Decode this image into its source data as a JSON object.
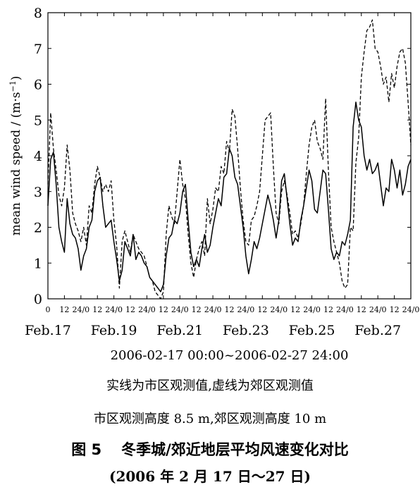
{
  "chart_data": {
    "type": "line",
    "ylabel": "mean wind speed / (m·s⁻¹)",
    "ylabel_main": "mean wind speed / (m·s",
    "ylabel_sup": "−1",
    "ylabel_tail": ")",
    "ylim": [
      0,
      8
    ],
    "y_ticks": [
      "0",
      "1",
      "2",
      "3",
      "4",
      "5",
      "6",
      "7",
      "8"
    ],
    "hour_ticks": [
      "0",
      "12",
      "24/0",
      "12",
      "24/0",
      "12",
      "24/0",
      "12",
      "24/0",
      "12",
      "24/0",
      "12",
      "24/0",
      "12",
      "24/0",
      "12",
      "24/0",
      "12",
      "24/0",
      "12",
      "24/0",
      "12",
      "24/0"
    ],
    "date_labels": [
      "Feb.17",
      "Feb.19",
      "Feb.21",
      "Feb.23",
      "Feb.25",
      "Feb.27"
    ],
    "xlabel": "2006-02-17 00:00~2006-02-27 24:00",
    "x_hours_max": 264,
    "series": [
      {
        "style": "solid",
        "points": [
          [
            0,
            2.6
          ],
          [
            2,
            3.9
          ],
          [
            4,
            4.1
          ],
          [
            6,
            3.2
          ],
          [
            8,
            2.0
          ],
          [
            10,
            1.6
          ],
          [
            12,
            1.3
          ],
          [
            14,
            2.8
          ],
          [
            16,
            2.1
          ],
          [
            18,
            1.8
          ],
          [
            20,
            1.7
          ],
          [
            22,
            1.4
          ],
          [
            24,
            0.8
          ],
          [
            26,
            1.2
          ],
          [
            28,
            1.4
          ],
          [
            30,
            2.0
          ],
          [
            32,
            2.2
          ],
          [
            34,
            3.0
          ],
          [
            36,
            3.3
          ],
          [
            38,
            3.4
          ],
          [
            40,
            2.6
          ],
          [
            42,
            2.0
          ],
          [
            44,
            2.1
          ],
          [
            46,
            2.2
          ],
          [
            48,
            1.6
          ],
          [
            50,
            1.1
          ],
          [
            52,
            0.5
          ],
          [
            54,
            0.8
          ],
          [
            56,
            1.6
          ],
          [
            58,
            1.4
          ],
          [
            60,
            1.2
          ],
          [
            62,
            1.8
          ],
          [
            64,
            1.1
          ],
          [
            66,
            1.3
          ],
          [
            68,
            1.2
          ],
          [
            70,
            1.0
          ],
          [
            72,
            0.9
          ],
          [
            74,
            0.6
          ],
          [
            76,
            0.5
          ],
          [
            78,
            0.4
          ],
          [
            80,
            0.3
          ],
          [
            82,
            0.2
          ],
          [
            84,
            0.4
          ],
          [
            86,
            1.2
          ],
          [
            88,
            1.7
          ],
          [
            90,
            1.8
          ],
          [
            92,
            2.2
          ],
          [
            94,
            2.1
          ],
          [
            96,
            2.4
          ],
          [
            98,
            3.0
          ],
          [
            100,
            3.2
          ],
          [
            102,
            2.2
          ],
          [
            104,
            1.3
          ],
          [
            106,
            0.9
          ],
          [
            108,
            1.1
          ],
          [
            110,
            0.9
          ],
          [
            112,
            1.4
          ],
          [
            114,
            1.8
          ],
          [
            116,
            1.3
          ],
          [
            118,
            1.5
          ],
          [
            120,
            2.0
          ],
          [
            122,
            2.4
          ],
          [
            124,
            2.8
          ],
          [
            126,
            2.6
          ],
          [
            128,
            3.4
          ],
          [
            130,
            3.5
          ],
          [
            132,
            4.2
          ],
          [
            134,
            4.0
          ],
          [
            136,
            3.4
          ],
          [
            138,
            3.2
          ],
          [
            140,
            2.6
          ],
          [
            142,
            2.0
          ],
          [
            144,
            1.2
          ],
          [
            146,
            0.7
          ],
          [
            148,
            1.1
          ],
          [
            150,
            1.6
          ],
          [
            152,
            1.4
          ],
          [
            154,
            1.7
          ],
          [
            156,
            2.1
          ],
          [
            158,
            2.5
          ],
          [
            160,
            2.9
          ],
          [
            162,
            2.6
          ],
          [
            164,
            2.2
          ],
          [
            166,
            1.7
          ],
          [
            168,
            2.2
          ],
          [
            170,
            3.3
          ],
          [
            172,
            3.5
          ],
          [
            174,
            2.8
          ],
          [
            176,
            2.1
          ],
          [
            178,
            1.5
          ],
          [
            180,
            1.7
          ],
          [
            182,
            1.6
          ],
          [
            184,
            2.2
          ],
          [
            186,
            2.6
          ],
          [
            188,
            3.1
          ],
          [
            190,
            3.6
          ],
          [
            192,
            3.3
          ],
          [
            194,
            2.5
          ],
          [
            196,
            2.4
          ],
          [
            198,
            3.0
          ],
          [
            200,
            3.6
          ],
          [
            202,
            3.5
          ],
          [
            204,
            2.5
          ],
          [
            206,
            1.4
          ],
          [
            208,
            1.1
          ],
          [
            210,
            1.3
          ],
          [
            212,
            1.2
          ],
          [
            214,
            1.6
          ],
          [
            216,
            1.5
          ],
          [
            218,
            1.8
          ],
          [
            220,
            2.2
          ],
          [
            222,
            4.8
          ],
          [
            224,
            5.5
          ],
          [
            226,
            5.0
          ],
          [
            228,
            4.8
          ],
          [
            230,
            4.0
          ],
          [
            232,
            3.6
          ],
          [
            234,
            3.9
          ],
          [
            236,
            3.5
          ],
          [
            238,
            3.6
          ],
          [
            240,
            3.8
          ],
          [
            242,
            3.2
          ],
          [
            244,
            2.6
          ],
          [
            246,
            3.1
          ],
          [
            248,
            3.0
          ],
          [
            250,
            3.9
          ],
          [
            252,
            3.6
          ],
          [
            254,
            3.1
          ],
          [
            256,
            3.6
          ],
          [
            258,
            2.9
          ],
          [
            260,
            3.2
          ],
          [
            262,
            3.7
          ],
          [
            264,
            3.9
          ]
        ]
      },
      {
        "style": "dashed",
        "points": [
          [
            0,
            3.2
          ],
          [
            2,
            5.2
          ],
          [
            4,
            4.2
          ],
          [
            6,
            3.6
          ],
          [
            8,
            2.9
          ],
          [
            10,
            2.6
          ],
          [
            12,
            3.1
          ],
          [
            14,
            4.3
          ],
          [
            16,
            3.6
          ],
          [
            18,
            2.4
          ],
          [
            20,
            2.1
          ],
          [
            22,
            1.9
          ],
          [
            24,
            1.6
          ],
          [
            26,
            2.0
          ],
          [
            28,
            1.5
          ],
          [
            30,
            2.6
          ],
          [
            32,
            2.4
          ],
          [
            34,
            3.2
          ],
          [
            36,
            3.7
          ],
          [
            38,
            3.4
          ],
          [
            40,
            3.0
          ],
          [
            42,
            3.2
          ],
          [
            44,
            3.0
          ],
          [
            46,
            3.3
          ],
          [
            48,
            2.2
          ],
          [
            50,
            1.5
          ],
          [
            52,
            0.3
          ],
          [
            54,
            1.6
          ],
          [
            56,
            1.9
          ],
          [
            58,
            1.6
          ],
          [
            60,
            1.3
          ],
          [
            62,
            1.8
          ],
          [
            64,
            1.6
          ],
          [
            66,
            1.4
          ],
          [
            68,
            1.3
          ],
          [
            70,
            1.2
          ],
          [
            72,
            0.9
          ],
          [
            74,
            0.6
          ],
          [
            76,
            0.5
          ],
          [
            78,
            0.2
          ],
          [
            80,
            0.1
          ],
          [
            82,
            0.0
          ],
          [
            84,
            0.2
          ],
          [
            86,
            1.8
          ],
          [
            88,
            2.6
          ],
          [
            90,
            2.3
          ],
          [
            92,
            2.1
          ],
          [
            94,
            3.0
          ],
          [
            96,
            3.9
          ],
          [
            98,
            3.2
          ],
          [
            100,
            2.8
          ],
          [
            102,
            1.8
          ],
          [
            104,
            1.0
          ],
          [
            106,
            0.6
          ],
          [
            108,
            1.1
          ],
          [
            110,
            1.4
          ],
          [
            112,
            1.6
          ],
          [
            114,
            1.2
          ],
          [
            116,
            2.8
          ],
          [
            118,
            2.1
          ],
          [
            120,
            2.5
          ],
          [
            122,
            3.1
          ],
          [
            124,
            3.0
          ],
          [
            126,
            3.7
          ],
          [
            128,
            3.5
          ],
          [
            130,
            4.4
          ],
          [
            132,
            4.1
          ],
          [
            134,
            5.3
          ],
          [
            136,
            5.1
          ],
          [
            138,
            4.2
          ],
          [
            140,
            3.1
          ],
          [
            142,
            2.2
          ],
          [
            144,
            1.6
          ],
          [
            146,
            1.5
          ],
          [
            148,
            2.2
          ],
          [
            150,
            2.3
          ],
          [
            152,
            2.6
          ],
          [
            154,
            3.0
          ],
          [
            156,
            4.0
          ],
          [
            158,
            5.0
          ],
          [
            160,
            5.1
          ],
          [
            162,
            5.2
          ],
          [
            164,
            3.7
          ],
          [
            166,
            2.4
          ],
          [
            168,
            2.1
          ],
          [
            170,
            3.0
          ],
          [
            172,
            3.3
          ],
          [
            174,
            2.9
          ],
          [
            176,
            2.4
          ],
          [
            178,
            1.8
          ],
          [
            180,
            1.9
          ],
          [
            182,
            1.7
          ],
          [
            184,
            2.1
          ],
          [
            186,
            2.6
          ],
          [
            188,
            3.5
          ],
          [
            190,
            4.3
          ],
          [
            192,
            4.8
          ],
          [
            194,
            5.0
          ],
          [
            196,
            4.4
          ],
          [
            198,
            4.2
          ],
          [
            200,
            3.9
          ],
          [
            202,
            5.6
          ],
          [
            204,
            3.6
          ],
          [
            206,
            2.0
          ],
          [
            208,
            1.6
          ],
          [
            210,
            1.3
          ],
          [
            212,
            1.0
          ],
          [
            214,
            0.5
          ],
          [
            216,
            0.3
          ],
          [
            218,
            0.4
          ],
          [
            220,
            2.0
          ],
          [
            222,
            1.9
          ],
          [
            224,
            3.8
          ],
          [
            226,
            4.5
          ],
          [
            228,
            6.2
          ],
          [
            230,
            6.9
          ],
          [
            232,
            7.5
          ],
          [
            234,
            7.6
          ],
          [
            236,
            7.8
          ],
          [
            238,
            7.0
          ],
          [
            240,
            6.9
          ],
          [
            242,
            6.5
          ],
          [
            244,
            6.0
          ],
          [
            246,
            6.2
          ],
          [
            248,
            5.5
          ],
          [
            250,
            6.3
          ],
          [
            252,
            5.9
          ],
          [
            254,
            6.5
          ],
          [
            256,
            6.9
          ],
          [
            258,
            7.0
          ],
          [
            260,
            6.6
          ],
          [
            262,
            5.5
          ],
          [
            264,
            4.3
          ]
        ]
      }
    ]
  },
  "notes": {
    "line1": "实线为市区观测值,虚线为郊区观测值",
    "line2": "市区观测高度 8.5 m,郊区观测高度 10 m"
  },
  "figure": {
    "label": "图 5",
    "title": "冬季城/郊近地层平均风速变化对比",
    "subtitle": "(2006 年 2 月 17 日～27 日)"
  }
}
